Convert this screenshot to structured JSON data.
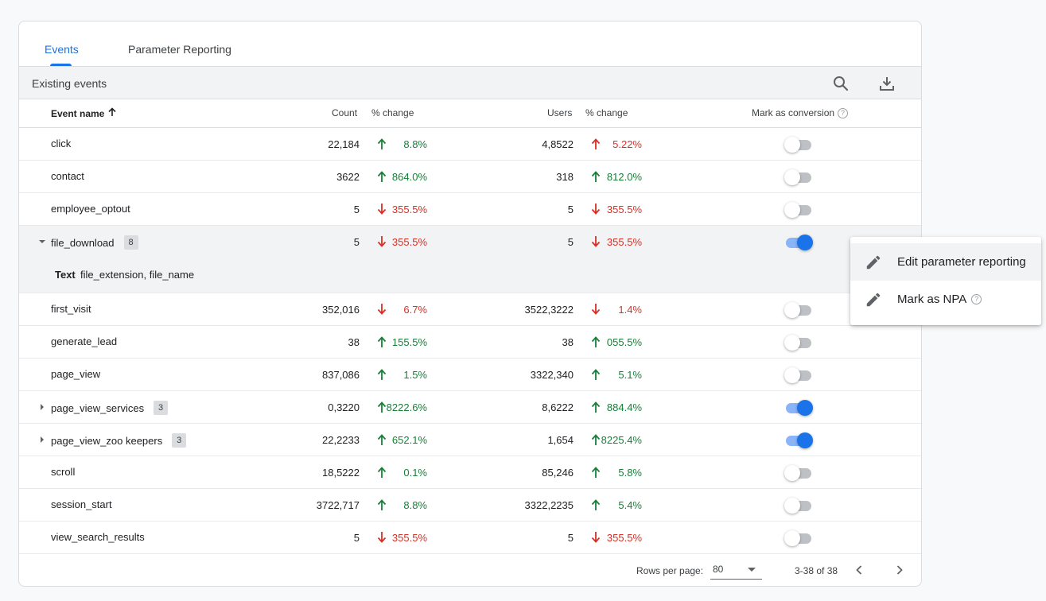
{
  "tabs": [
    {
      "label": "Events"
    },
    {
      "label": "Parameter Reporting"
    }
  ],
  "toolbar": {
    "title": "Existing events",
    "search_icon": "search-icon",
    "download_icon": "download-icon"
  },
  "columns": {
    "event_name": "Event name",
    "count": "Count",
    "count_change": "% change",
    "users": "Users",
    "users_change": "% change",
    "mark_conversion": "Mark as conversion"
  },
  "rows": [
    {
      "name": "click",
      "count": "22,184",
      "count_dir": "up",
      "count_pct": "8.8%",
      "users": "4,8522",
      "users_dir": "up",
      "users_pct": "5.22%",
      "users_pct_color": "red",
      "conversion": false
    },
    {
      "name": "contact",
      "count": "3622",
      "count_dir": "up",
      "count_pct": "864.0%",
      "users": "318",
      "users_dir": "up",
      "users_pct": "812.0%",
      "conversion": false
    },
    {
      "name": "employee_optout",
      "count": "5",
      "count_dir": "down",
      "count_pct": "355.5%",
      "users": "5",
      "users_dir": "down",
      "users_pct": "355.5%",
      "conversion": false
    },
    {
      "name": "file_download",
      "badge": "8",
      "expanded": true,
      "count": "5",
      "count_dir": "down",
      "count_pct": "355.5%",
      "users": "5",
      "users_dir": "down",
      "users_pct": "355.5%",
      "conversion": true
    },
    {
      "name": "first_visit",
      "count": "352,016",
      "count_dir": "down",
      "count_pct": "6.7%",
      "users": "3522,3222",
      "users_dir": "down",
      "users_pct": "1.4%",
      "conversion": false
    },
    {
      "name": "generate_lead",
      "count": "38",
      "count_dir": "up",
      "count_pct": "155.5%",
      "users": "38",
      "users_dir": "up",
      "users_pct": "055.5%",
      "conversion": false
    },
    {
      "name": "page_view",
      "count": "837,086",
      "count_dir": "up",
      "count_pct": "1.5%",
      "users": "3322,340",
      "users_dir": "up",
      "users_pct": "5.1%",
      "conversion": false
    },
    {
      "name": "page_view_services",
      "badge": "3",
      "collapsed": true,
      "count": "0,3220",
      "count_dir": "up",
      "count_pct": "8222.6%",
      "users": "8,6222",
      "users_dir": "up",
      "users_pct": "884.4%",
      "conversion": true
    },
    {
      "name": "page_view_zoo keepers",
      "badge": "3",
      "collapsed": true,
      "count": "22,2233",
      "count_dir": "up",
      "count_pct": "652.1%",
      "users": "1,654",
      "users_dir": "up",
      "users_pct": "8225.4%",
      "conversion": true
    },
    {
      "name": "scroll",
      "count": "18,5222",
      "count_dir": "up",
      "count_pct": "0.1%",
      "users": "85,246",
      "users_dir": "up",
      "users_pct": "5.8%",
      "conversion": false
    },
    {
      "name": "session_start",
      "count": "3722,717",
      "count_dir": "up",
      "count_pct": "8.8%",
      "users": "3322,2235",
      "users_dir": "up",
      "users_pct": "5.4%",
      "conversion": false
    },
    {
      "name": "view_search_results",
      "count": "5",
      "count_dir": "down",
      "count_pct": "355.5%",
      "users": "5",
      "users_dir": "down",
      "users_pct": "355.5%",
      "conversion": false
    }
  ],
  "detail": {
    "label": "Text",
    "value": "file_extension, file_name"
  },
  "footer": {
    "rows_label": "Rows per page:",
    "rows_value": "80",
    "range": "3-38 of 38"
  },
  "menu": {
    "items": [
      {
        "label": "Edit parameter reporting",
        "icon": "pencil-icon"
      },
      {
        "label": "Mark as NPA",
        "icon": "pencil-icon"
      }
    ]
  },
  "colors": {
    "accent": "#1a73e8",
    "up": "#188038",
    "down": "#d93025"
  }
}
